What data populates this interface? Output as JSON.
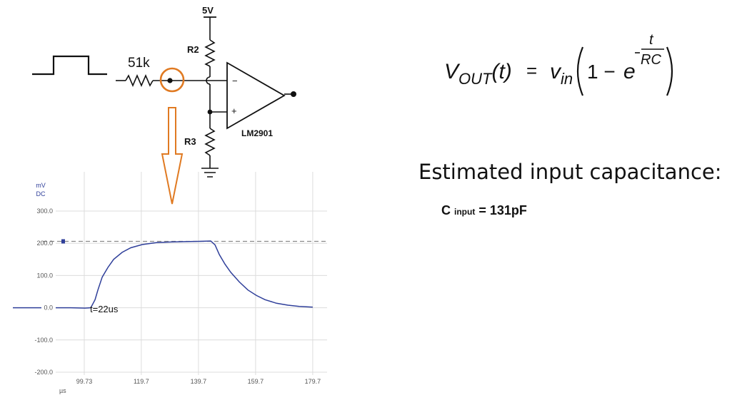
{
  "schematic": {
    "resistor_label": "51k",
    "supply_label": "5V",
    "r2_label": "R2",
    "r3_label": "R3",
    "opamp_label": "LM2901",
    "minus_sign": "−",
    "plus_sign": "+"
  },
  "formula": {
    "lhs_v": "V",
    "lhs_sub": "OUT",
    "lhs_arg": "(t)",
    "equals": "=",
    "vin_v": "v",
    "vin_sub": "in",
    "one_minus": "1 −",
    "e": "e",
    "exp_num": "t",
    "exp_den": "RC"
  },
  "estimate": {
    "title": "Estimated input capacitance:",
    "c_label": "C",
    "c_sub": "input",
    "c_value": "= 131pF"
  },
  "scope": {
    "unit_top": "mV",
    "coupling": "DC",
    "annotation": "t=22us",
    "x_unit": "µs",
    "colors": {
      "trace": "#2f3f9a",
      "grid": "#dcdcdc",
      "reference": "#8a8a8a"
    },
    "chart_data": {
      "type": "line",
      "x_ticks": [
        "99.73",
        "119.7",
        "139.7",
        "159.7",
        "179.7"
      ],
      "y_ticks": [
        "300.0",
        "200.0",
        "100.0",
        "0.0",
        "-100.0",
        "-200.0"
      ],
      "ylim": [
        -200,
        300
      ],
      "xlim": [
        89.73,
        184.73
      ],
      "xlabel": "µs",
      "ylabel": "mV",
      "reference_level": 206,
      "series": [
        {
          "x": [
            89.73,
            95,
            100,
            102.0,
            103.5,
            104.5,
            106,
            108,
            110,
            113,
            116,
            120,
            125,
            130,
            135,
            140,
            144,
            145.5,
            147,
            149,
            151,
            154,
            157,
            160,
            163,
            167,
            171,
            175,
            179.7
          ],
          "values": [
            0,
            0,
            -1,
            0,
            25,
            55,
            95,
            125,
            150,
            172,
            186,
            196,
            202,
            204,
            205,
            206,
            207,
            195,
            165,
            135,
            110,
            80,
            55,
            38,
            25,
            14,
            8,
            4,
            2
          ]
        }
      ]
    }
  }
}
